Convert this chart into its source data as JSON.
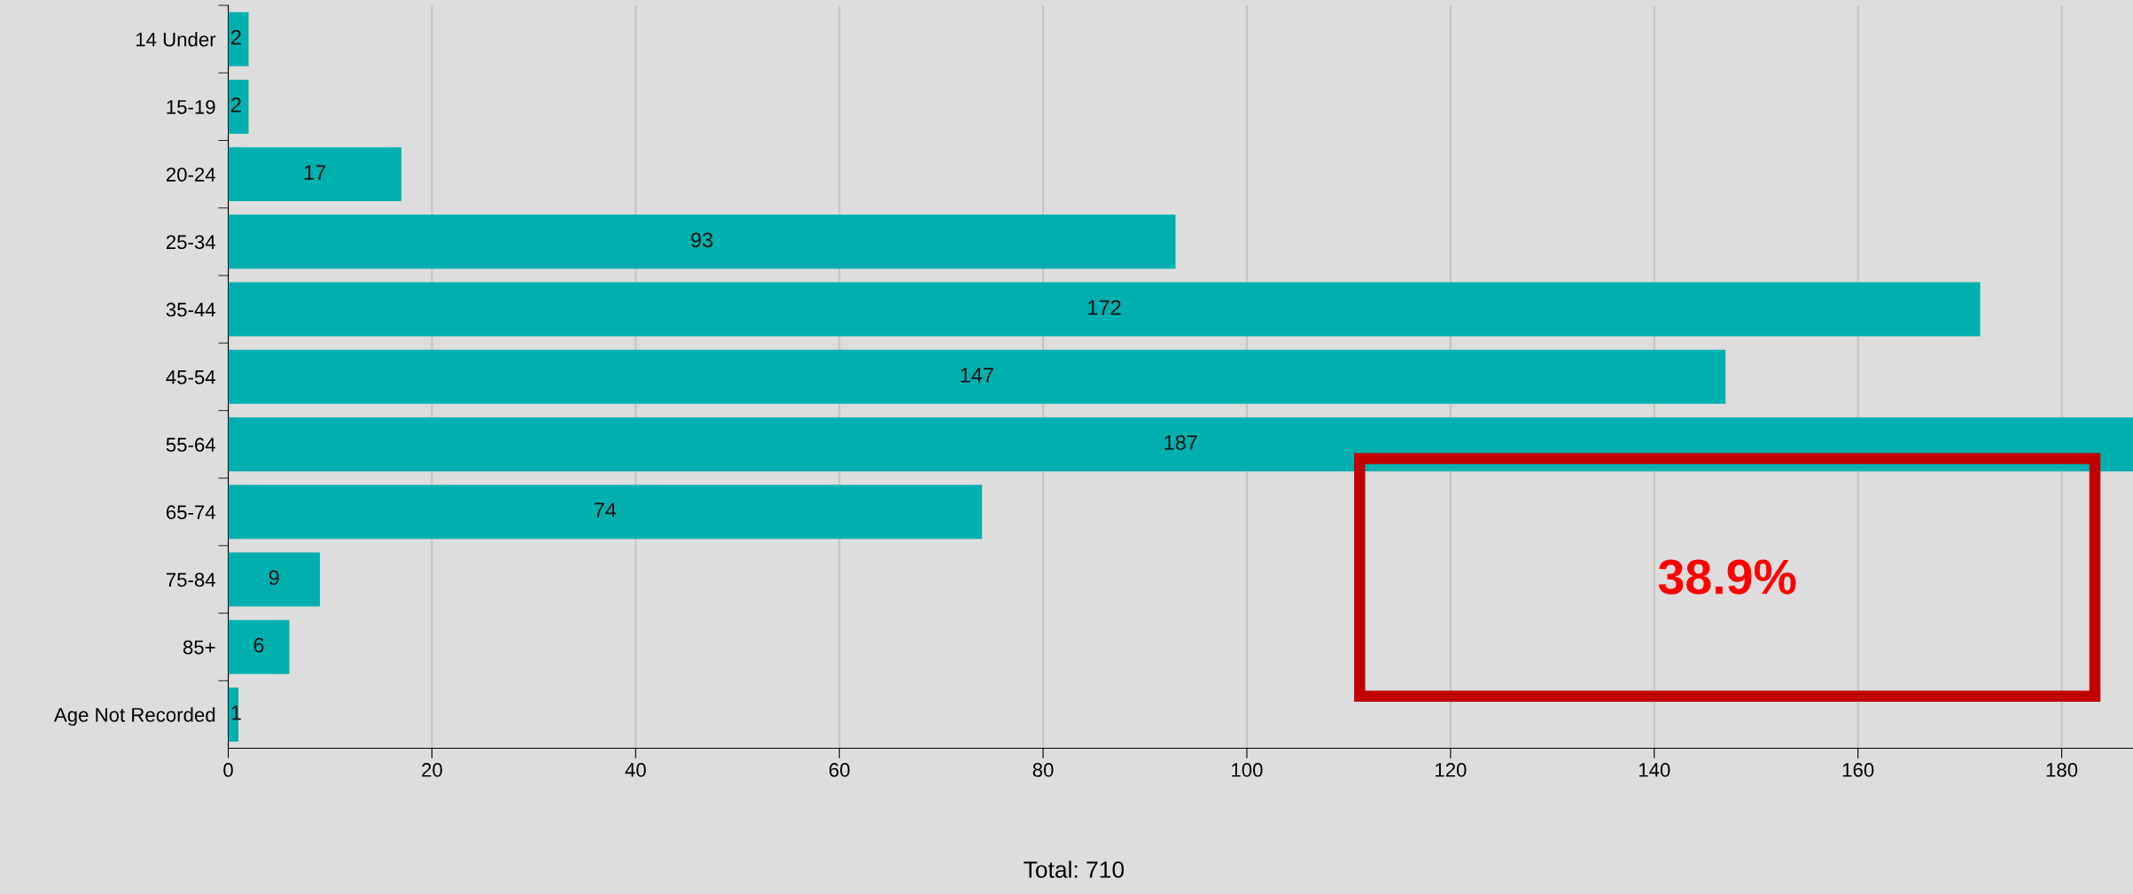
{
  "chart_data": {
    "type": "bar",
    "orientation": "horizontal",
    "categories": [
      "14 Under",
      "15-19",
      "20-24",
      "25-34",
      "35-44",
      "45-54",
      "55-64",
      "65-74",
      "75-84",
      "85+",
      "Age Not Recorded"
    ],
    "values": [
      2,
      2,
      17,
      93,
      172,
      147,
      187,
      74,
      9,
      6,
      1
    ],
    "color": "#00b0ae",
    "data_labels": true,
    "xlim": [
      0,
      187
    ],
    "xticks": [
      0,
      20,
      40,
      60,
      80,
      100,
      120,
      140,
      160,
      180
    ],
    "grid": "x",
    "annotations": [
      "38.9%",
      "Total: 710"
    ]
  }
}
